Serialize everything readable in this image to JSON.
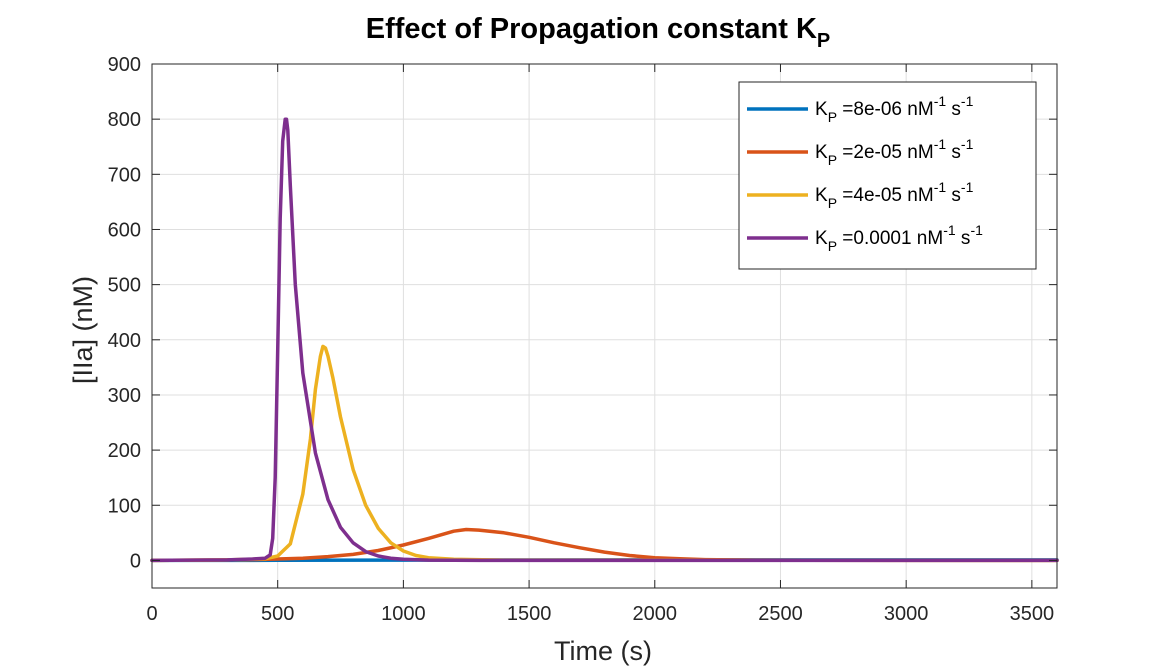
{
  "chart_data": {
    "type": "line",
    "title": "Effect of Propagation constant",
    "title_symbol": "K",
    "title_symbol_sub": "P",
    "xlabel": "Time (s)",
    "ylabel": "[IIa] (nM)",
    "xlim": [
      0,
      3600
    ],
    "ylim": [
      -50,
      900
    ],
    "xticks": [
      0,
      500,
      1000,
      1500,
      2000,
      2500,
      3000,
      3500
    ],
    "yticks": [
      0,
      100,
      200,
      300,
      400,
      500,
      600,
      700,
      800,
      900
    ],
    "grid": true,
    "legend_position": "top-right",
    "series": [
      {
        "name": "K_P =8e-06 nM^-1 s^-1",
        "legend_prefix": "K",
        "legend_sub": "P",
        "legend_value": " =8e-06 nM",
        "legend_exp1": "-1",
        "legend_mid": " s",
        "legend_exp2": "-1",
        "color": "#0072BD",
        "x": [
          0,
          500,
          1000,
          1500,
          2000,
          2500,
          3000,
          3600
        ],
        "y": [
          0,
          0.3,
          0.6,
          0.8,
          0.9,
          1.0,
          1.0,
          1.0
        ]
      },
      {
        "name": "K_P =2e-05 nM^-1 s^-1",
        "legend_prefix": "K",
        "legend_sub": "P",
        "legend_value": " =2e-05 nM",
        "legend_exp1": "-1",
        "legend_mid": " s",
        "legend_exp2": "-1",
        "color": "#D95319",
        "x": [
          0,
          200,
          400,
          500,
          600,
          700,
          800,
          900,
          1000,
          1100,
          1200,
          1250,
          1300,
          1400,
          1500,
          1600,
          1700,
          1800,
          1900,
          2000,
          2100,
          2200,
          2400,
          2600,
          3000,
          3600
        ],
        "y": [
          0,
          0.5,
          1.5,
          2.5,
          4,
          7,
          11,
          18,
          28,
          40,
          53,
          56,
          55,
          50,
          42,
          32,
          23,
          15,
          9,
          5,
          3,
          1.5,
          0.5,
          0.2,
          0,
          0
        ]
      },
      {
        "name": "K_P =4e-05 nM^-1 s^-1",
        "legend_prefix": "K",
        "legend_sub": "P",
        "legend_value": " =4e-05 nM",
        "legend_exp1": "-1",
        "legend_mid": " s",
        "legend_exp2": "-1",
        "color": "#EDB120",
        "x": [
          0,
          300,
          450,
          500,
          550,
          600,
          630,
          650,
          670,
          680,
          690,
          700,
          720,
          750,
          800,
          850,
          900,
          950,
          1000,
          1050,
          1100,
          1200,
          1400,
          3600
        ],
        "y": [
          0,
          1,
          3,
          8,
          30,
          120,
          220,
          310,
          370,
          388,
          385,
          370,
          330,
          260,
          165,
          100,
          58,
          32,
          17,
          9,
          5,
          2,
          0.5,
          0
        ]
      },
      {
        "name": "K_P =0.0001 nM^-1 s^-1",
        "legend_prefix": "K",
        "legend_sub": "P",
        "legend_value": " =0.0001 nM",
        "legend_exp1": "-1",
        "legend_mid": " s",
        "legend_exp2": "-1",
        "color": "#7E2F8E",
        "x": [
          0,
          300,
          400,
          450,
          470,
          480,
          490,
          500,
          510,
          520,
          530,
          535,
          540,
          550,
          570,
          600,
          650,
          700,
          750,
          800,
          850,
          900,
          950,
          1000,
          1100,
          1300,
          3600
        ],
        "y": [
          0,
          1,
          2.5,
          4,
          10,
          40,
          150,
          380,
          620,
          760,
          800,
          800,
          780,
          680,
          500,
          340,
          195,
          110,
          60,
          32,
          16,
          8,
          4,
          2,
          0.5,
          0,
          0
        ]
      }
    ]
  }
}
